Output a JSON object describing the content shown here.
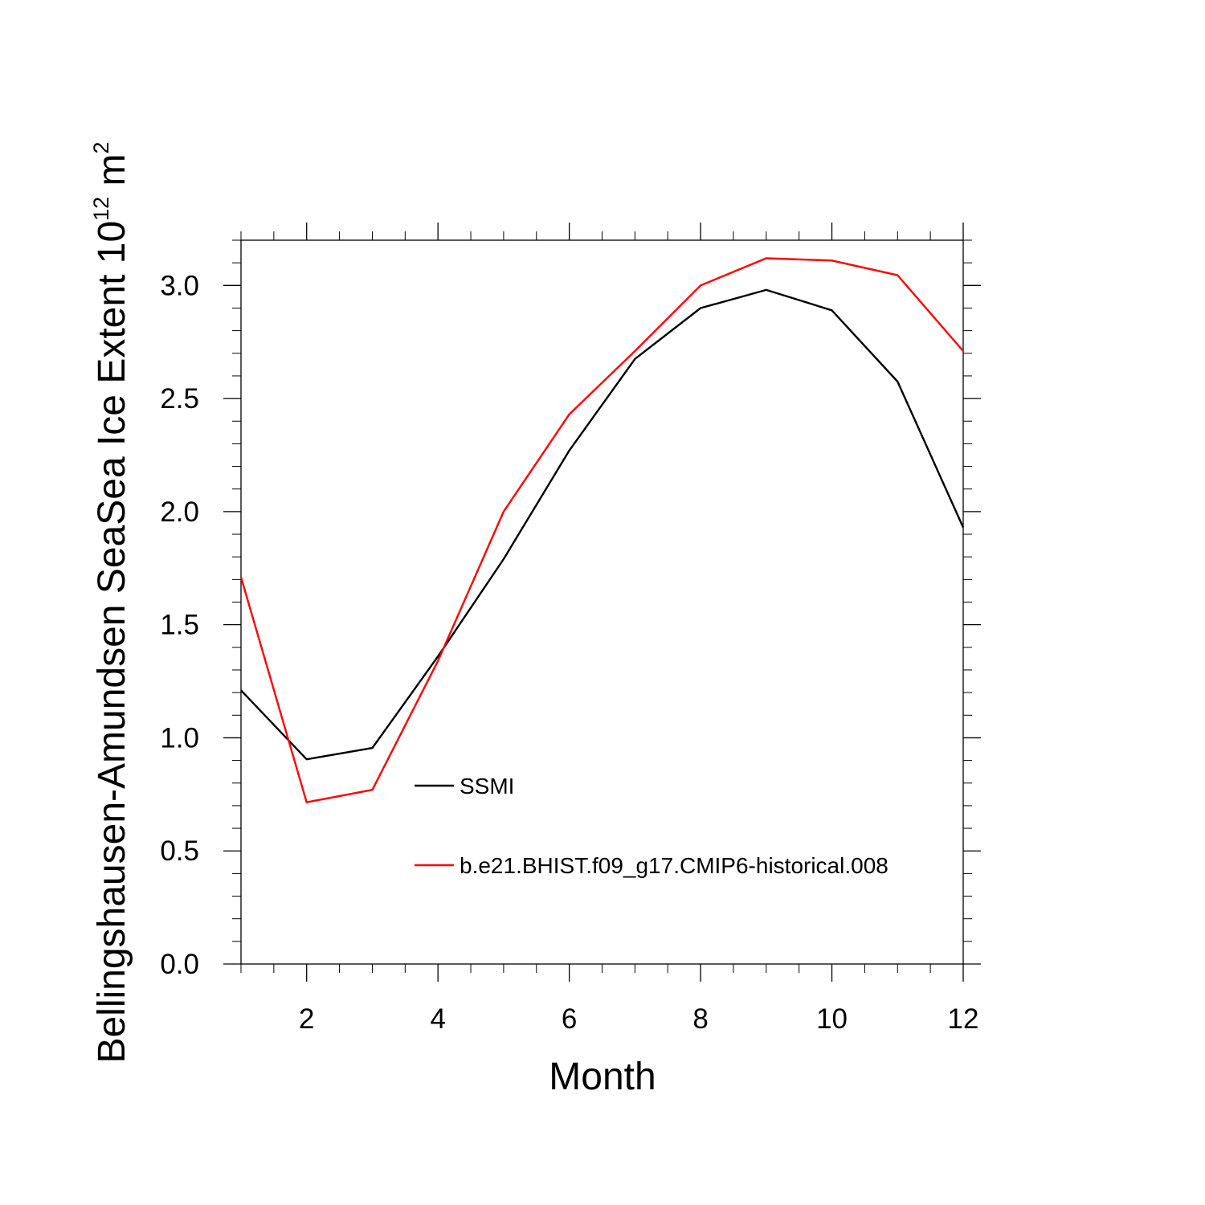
{
  "chart_data": {
    "type": "line",
    "title": "",
    "xlabel": "Month",
    "ylabel": {
      "main": "Bellingshausen-Amundsen SeaSea Ice Extent 10",
      "superscript": "12",
      "unit": " m",
      "unit_superscript": "2"
    },
    "xlim": [
      1,
      12
    ],
    "ylim": [
      0,
      3.2
    ],
    "xticks": [
      2,
      4,
      6,
      8,
      10,
      12
    ],
    "xtick_labels": [
      "2",
      "4",
      "6",
      "8",
      "10",
      "12"
    ],
    "yticks": [
      0,
      0.5,
      1,
      1.5,
      2,
      2.5,
      3
    ],
    "ytick_labels": [
      "0.0",
      "0.5",
      "1.0",
      "1.5",
      "2.0",
      "2.5",
      "3.0"
    ],
    "grid": false,
    "legend_position": "lower-center",
    "x": [
      1,
      2,
      3,
      4,
      5,
      6,
      7,
      8,
      9,
      10,
      11,
      12
    ],
    "series": [
      {
        "name": "SSMI",
        "color": "#000000",
        "values": [
          1.21,
          0.905,
          0.955,
          1.36,
          1.79,
          2.27,
          2.675,
          2.9,
          2.98,
          2.89,
          2.575,
          1.93
        ]
      },
      {
        "name": "b.e21.BHIST.f09_g17.CMIP6-historical.008",
        "color": "#ff0000",
        "values": [
          1.71,
          0.715,
          0.77,
          1.34,
          2.0,
          2.43,
          2.71,
          3.0,
          3.12,
          3.11,
          3.045,
          2.71
        ]
      }
    ]
  }
}
